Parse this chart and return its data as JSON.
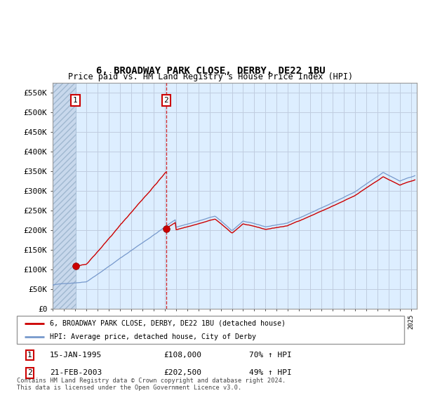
{
  "title": "6, BROADWAY PARK CLOSE, DERBY, DE22 1BU",
  "subtitle": "Price paid vs. HM Land Registry's House Price Index (HPI)",
  "ylim": [
    0,
    575000
  ],
  "yticks": [
    0,
    50000,
    100000,
    150000,
    200000,
    250000,
    300000,
    350000,
    400000,
    450000,
    500000,
    550000
  ],
  "ytick_labels": [
    "£0",
    "£50K",
    "£100K",
    "£150K",
    "£200K",
    "£250K",
    "£300K",
    "£350K",
    "£400K",
    "£450K",
    "£500K",
    "£550K"
  ],
  "background_color": "#ffffff",
  "plot_bg_color": "#ddeeff",
  "grid_color": "#c0cce0",
  "sale1_date": 1995.04,
  "sale1_price": 108000,
  "sale2_date": 2003.13,
  "sale2_price": 202500,
  "red_line_color": "#cc0000",
  "blue_line_color": "#7799cc",
  "marker_color": "#cc0000",
  "legend1": "6, BROADWAY PARK CLOSE, DERBY, DE22 1BU (detached house)",
  "legend2": "HPI: Average price, detached house, City of Derby",
  "footnote": "Contains HM Land Registry data © Crown copyright and database right 2024.\nThis data is licensed under the Open Government Licence v3.0.",
  "xmin": 1993.0,
  "xmax": 2025.5,
  "hatch_xmax": 1995.04
}
